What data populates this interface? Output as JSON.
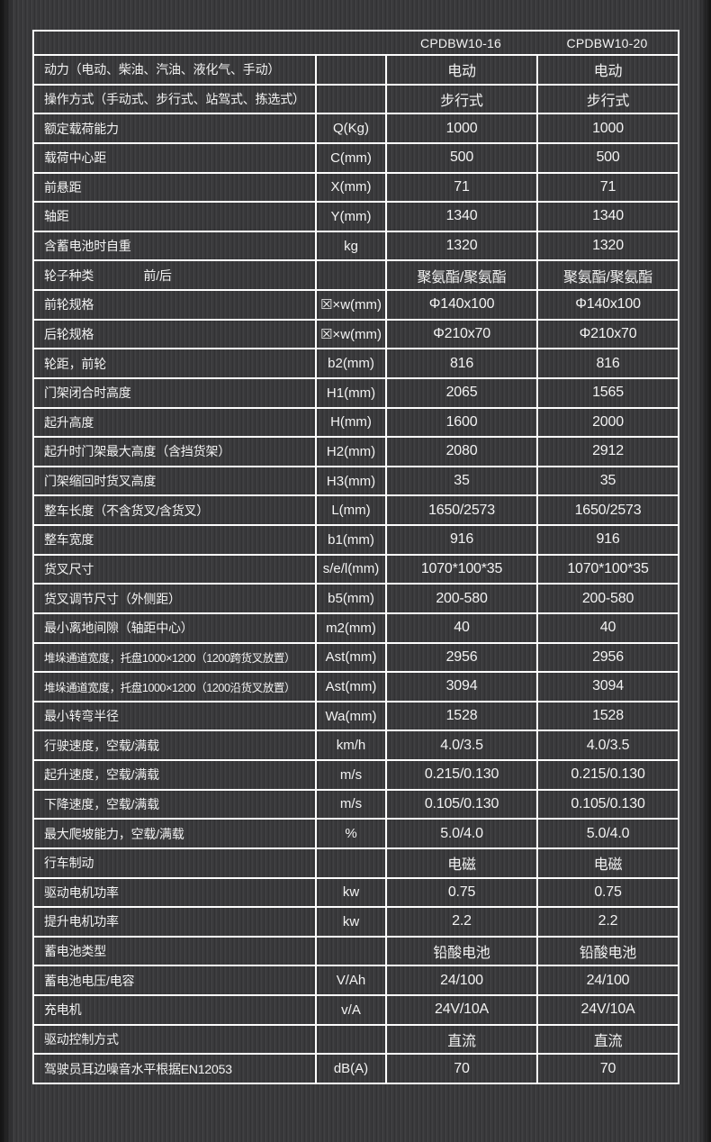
{
  "colors": {
    "background": "#3a3a3c",
    "border": "#fdfdfd",
    "text": "#f3f3f3",
    "edge_shadow": "#080808"
  },
  "table": {
    "col_headers": [
      "CPDBW10-16",
      "CPDBW10-20"
    ],
    "rows": [
      {
        "label": "动力（电动、柴油、汽油、液化气、手动）",
        "unit": "",
        "values": [
          "电动",
          "电动"
        ]
      },
      {
        "label": "操作方式（手动式、步行式、站驾式、拣选式）",
        "unit": "",
        "values": [
          "步行式",
          "步行式"
        ]
      },
      {
        "label": "额定载荷能力",
        "unit": "Q(Kg)",
        "values": [
          "1000",
          "1000"
        ]
      },
      {
        "label": "载荷中心距",
        "unit": "C(mm)",
        "values": [
          "500",
          "500"
        ]
      },
      {
        "label": "前悬距",
        "unit": "X(mm)",
        "values": [
          "71",
          "71"
        ]
      },
      {
        "label": "轴距",
        "unit": "Y(mm)",
        "values": [
          "1340",
          "1340"
        ]
      },
      {
        "label": "含蓄电池时自重",
        "unit": "kg",
        "values": [
          "1320",
          "1320"
        ]
      },
      {
        "label": "轮子种类　　　　前/后",
        "unit": "",
        "values": [
          "聚氨酯/聚氨酯",
          "聚氨酯/聚氨酯"
        ]
      },
      {
        "label": "前轮规格",
        "unit": "☒×w(mm)",
        "values": [
          "Φ140x100",
          "Φ140x100"
        ]
      },
      {
        "label": "后轮规格",
        "unit": "☒×w(mm)",
        "values": [
          "Φ210x70",
          "Φ210x70"
        ]
      },
      {
        "label": "轮距，前轮",
        "unit": "b2(mm)",
        "values": [
          "816",
          "816"
        ]
      },
      {
        "label": "门架闭合时高度",
        "unit": "H1(mm)",
        "values": [
          "2065",
          "1565"
        ]
      },
      {
        "label": "起升高度",
        "unit": "H(mm)",
        "values": [
          "1600",
          "2000"
        ]
      },
      {
        "label": "起升时门架最大高度（含挡货架）",
        "unit": "H2(mm)",
        "values": [
          "2080",
          "2912"
        ]
      },
      {
        "label": "门架缩回时货叉高度",
        "unit": "H3(mm)",
        "values": [
          "35",
          "35"
        ]
      },
      {
        "label": "整车长度（不含货叉/含货叉）",
        "unit": "L(mm)",
        "values": [
          "1650/2573",
          "1650/2573"
        ]
      },
      {
        "label": "整车宽度",
        "unit": "b1(mm)",
        "values": [
          "916",
          "916"
        ]
      },
      {
        "label": "货叉尺寸",
        "unit": "s/e/l(mm)",
        "values": [
          "1070*100*35",
          "1070*100*35"
        ]
      },
      {
        "label": "货叉调节尺寸（外侧距）",
        "unit": "b5(mm)",
        "values": [
          "200-580",
          "200-580"
        ]
      },
      {
        "label": "最小离地间隙（轴距中心）",
        "unit": "m2(mm)",
        "values": [
          "40",
          "40"
        ]
      },
      {
        "label": "堆垛通道宽度，托盘1000×1200（1200跨货叉放置）",
        "unit": "Ast(mm)",
        "values": [
          "2956",
          "2956"
        ]
      },
      {
        "label": "堆垛通道宽度，托盘1000×1200（1200沿货叉放置）",
        "unit": "Ast(mm)",
        "values": [
          "3094",
          "3094"
        ]
      },
      {
        "label": "最小转弯半径",
        "unit": "Wa(mm)",
        "values": [
          "1528",
          "1528"
        ]
      },
      {
        "label": "行驶速度，空载/满载",
        "unit": "km/h",
        "values": [
          "4.0/3.5",
          "4.0/3.5"
        ]
      },
      {
        "label": "起升速度，空载/满载",
        "unit": "m/s",
        "values": [
          "0.215/0.130",
          "0.215/0.130"
        ]
      },
      {
        "label": "下降速度，空载/满载",
        "unit": "m/s",
        "values": [
          "0.105/0.130",
          "0.105/0.130"
        ]
      },
      {
        "label": "最大爬坡能力，空载/满载",
        "unit": "%",
        "values": [
          "5.0/4.0",
          "5.0/4.0"
        ]
      },
      {
        "label": "行车制动",
        "unit": "",
        "values": [
          "电磁",
          "电磁"
        ]
      },
      {
        "label": "驱动电机功率",
        "unit": "kw",
        "values": [
          "0.75",
          "0.75"
        ]
      },
      {
        "label": "提升电机功率",
        "unit": "kw",
        "values": [
          "2.2",
          "2.2"
        ]
      },
      {
        "label": "蓄电池类型",
        "unit": "",
        "values": [
          "铅酸电池",
          "铅酸电池"
        ]
      },
      {
        "label": "蓄电池电压/电容",
        "unit": "V/Ah",
        "values": [
          "24/100",
          "24/100"
        ]
      },
      {
        "label": "充电机",
        "unit": "v/A",
        "values": [
          "24V/10A",
          "24V/10A"
        ]
      },
      {
        "label": "驱动控制方式",
        "unit": "",
        "values": [
          "直流",
          "直流"
        ]
      },
      {
        "label": "驾驶员耳边噪音水平根据EN12053",
        "unit": "dB(A)",
        "values": [
          "70",
          "70"
        ]
      }
    ]
  }
}
